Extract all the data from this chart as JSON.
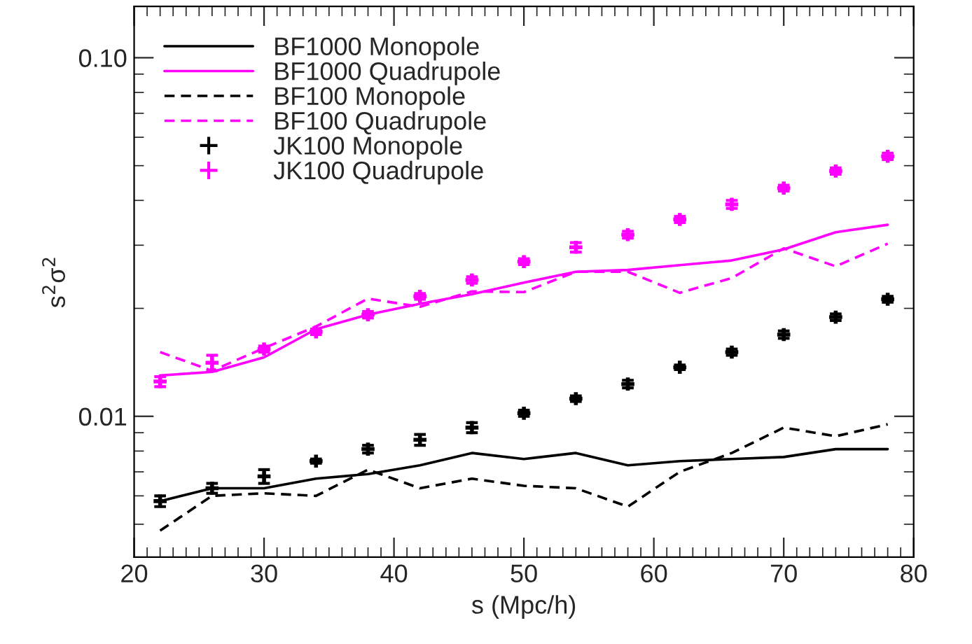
{
  "chart_data": {
    "type": "line",
    "xlabel": "s (Mpc/h)",
    "ylabel": "s$^{2}$σ$^{2}$",
    "x": [
      22,
      26,
      30,
      34,
      38,
      42,
      46,
      50,
      54,
      58,
      62,
      66,
      70,
      74,
      78
    ],
    "series": [
      {
        "name": "BF1000 Monopole",
        "color": "#000000",
        "line_style": "solid",
        "values": [
          0.0058,
          0.0063,
          0.0063,
          0.0067,
          0.0069,
          0.0073,
          0.0079,
          0.0076,
          0.0079,
          0.0073,
          0.0075,
          0.0076,
          0.0077,
          0.0081,
          0.0081
        ]
      },
      {
        "name": "BF1000 Quadrupole",
        "color": "#ff00ff",
        "line_style": "solid",
        "values": [
          0.013,
          0.0133,
          0.0146,
          0.0175,
          0.0192,
          0.0206,
          0.0219,
          0.0236,
          0.0253,
          0.0256,
          0.0264,
          0.0272,
          0.0292,
          0.0326,
          0.0342
        ]
      },
      {
        "name": "BF100 Monopole",
        "color": "#000000",
        "line_style": "dashed",
        "values": [
          0.0048,
          0.006,
          0.0061,
          0.006,
          0.0071,
          0.0063,
          0.0067,
          0.0064,
          0.0063,
          0.0056,
          0.007,
          0.0079,
          0.0093,
          0.0088,
          0.0095
        ]
      },
      {
        "name": "BF100 Quadrupole",
        "color": "#ff00ff",
        "line_style": "dashed",
        "values": [
          0.0151,
          0.0134,
          0.0155,
          0.0178,
          0.0213,
          0.0202,
          0.0223,
          0.0222,
          0.0253,
          0.0253,
          0.0221,
          0.0243,
          0.0294,
          0.0262,
          0.0303
        ]
      },
      {
        "name": "JK100 Monopole",
        "color": "#000000",
        "type": "scatter",
        "marker": "cross",
        "values": [
          0.0058,
          0.0063,
          0.0068,
          0.0075,
          0.0081,
          0.0086,
          0.0093,
          0.0102,
          0.0112,
          0.0123,
          0.0137,
          0.0151,
          0.0169,
          0.0189,
          0.0212
        ],
        "errors": [
          0.0002,
          0.0002,
          0.0003,
          0.0001,
          0.0002,
          0.0003,
          0.0003,
          0.0002,
          0.0002,
          0.0003,
          0.0002,
          0.0003,
          0.0004,
          0.0004,
          0.0004
        ]
      },
      {
        "name": "JK100 Quadrupole",
        "color": "#ff00ff",
        "type": "scatter",
        "marker": "cross",
        "values": [
          0.0125,
          0.0141,
          0.0154,
          0.0172,
          0.0192,
          0.0216,
          0.024,
          0.027,
          0.0296,
          0.0321,
          0.0354,
          0.039,
          0.0433,
          0.0483,
          0.0531
        ],
        "errors": [
          0.0004,
          0.0007,
          0.0003,
          0.0003,
          0.0004,
          0.0004,
          0.0005,
          0.0005,
          0.0009,
          0.0007,
          0.0007,
          0.001,
          0.0008,
          0.001,
          0.0011
        ]
      }
    ],
    "log": "y",
    "xlim": [
      20,
      80
    ],
    "xticks": [
      20,
      30,
      40,
      50,
      60,
      70,
      80
    ],
    "ylim": [
      0.00405,
      0.139
    ],
    "yticks": [
      {
        "value": 0.01,
        "label": "0.01"
      },
      {
        "value": 0.1,
        "label": "0.10"
      }
    ],
    "grid": false,
    "legend": "top left"
  }
}
